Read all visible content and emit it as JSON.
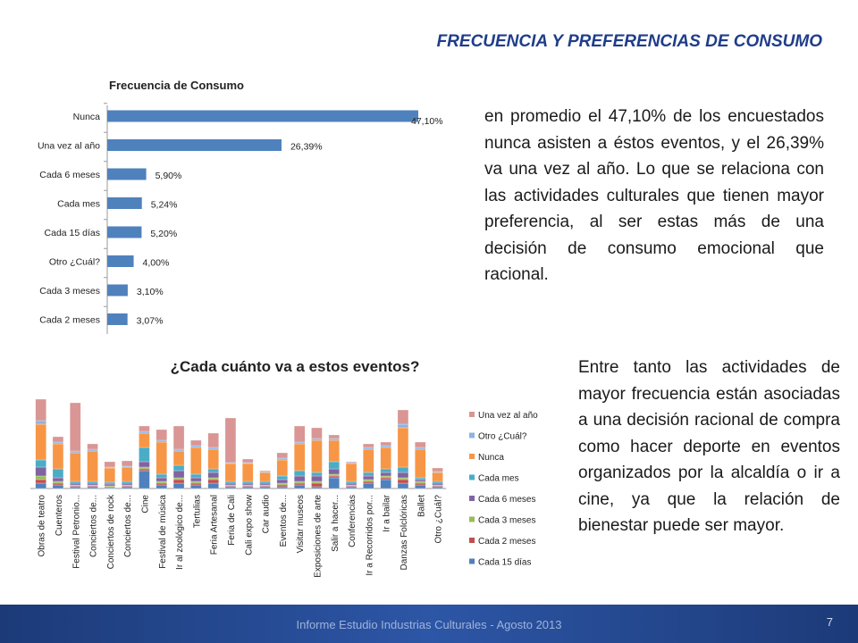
{
  "header": {
    "title": "FRECUENCIA Y PREFERENCIAS DE CONSUMO"
  },
  "text": {
    "paragraph1": "en promedio el 47,10% de los encuestados nunca asisten a éstos eventos, y el 26,39% va una vez al año. Lo que se relaciona con las actividades culturales que tienen mayor preferencia, al ser estas más de una decisión de consumo emocional que racional.",
    "paragraph2": "Entre tanto las actividades de mayor frecuencia están asociadas a una decisión racional de compra como hacer deporte en eventos organizados por la alcaldía o ir a cine, ya que la relación de bienestar puede ser mayor."
  },
  "footer": {
    "text": "Informe Estudio Industrias Culturales  -  Agosto 2013",
    "page": "7"
  },
  "chart_data": [
    {
      "type": "bar",
      "orientation": "horizontal",
      "title": "Frecuencia de Consumo",
      "color": "#4f81bd",
      "xlim": [
        0,
        47.1
      ],
      "categories": [
        "Nunca",
        "Una vez al año",
        "Cada 6 meses",
        "Cada mes",
        "Cada 15 días",
        "Otro ¿Cuál?",
        "Cada 3 meses",
        "Cada 2 meses"
      ],
      "values": [
        47.1,
        26.39,
        5.9,
        5.24,
        5.2,
        4.0,
        3.1,
        3.07
      ],
      "labels": [
        "47,10%",
        "26,39%",
        "5,90%",
        "5,24%",
        "5,20%",
        "4,00%",
        "3,10%",
        "3,07%"
      ]
    },
    {
      "type": "bar",
      "stacked": true,
      "title": "¿Cada cuánto va a estos eventos?",
      "legend": "right",
      "categories": [
        "Obras de teatro",
        "Cuenteros",
        "Festival Petronio...",
        "Conciertos de...",
        "Conciertos de rock",
        "Conciertos de...",
        "Cine",
        "Festival de música",
        "Ir al zoológico de...",
        "Tertulias",
        "Feria Artesanal",
        "Feria de Cali",
        "Cali expo show",
        "Car audio",
        "Eventos de...",
        "Visitar museos",
        "Exposiciones de arte",
        "Salir a hacer...",
        "Conferencias",
        "Ir a Recorridos por...",
        "Ir a bailar",
        "Danzas Folclóricas",
        "Ballet",
        "Otro ¿Cuál?"
      ],
      "series": [
        {
          "name": "Cada 15 días",
          "color": "#4f81bd",
          "values": [
            3,
            2,
            1,
            1,
            0.5,
            1,
            10,
            2,
            3,
            2,
            3,
            1,
            1,
            1,
            1,
            2,
            1,
            6,
            1,
            3,
            5,
            3,
            2,
            1
          ]
        },
        {
          "name": "Cada 2 meses",
          "color": "#c0504d",
          "values": [
            2,
            1,
            0.5,
            0.5,
            0.5,
            0.5,
            1,
            1,
            2,
            1,
            2,
            0.5,
            0.5,
            0.5,
            1,
            1,
            2,
            1,
            0.5,
            1,
            1,
            2,
            1,
            0.5
          ]
        },
        {
          "name": "Cada 3 meses",
          "color": "#9bbb59",
          "values": [
            2,
            1,
            0.5,
            0.5,
            0.5,
            0.5,
            1,
            1,
            1,
            1,
            1,
            0.5,
            0.5,
            0.5,
            1,
            1,
            1,
            1,
            0.5,
            1,
            1,
            1,
            1,
            0.5
          ]
        },
        {
          "name": "Cada 6 meses",
          "color": "#8064a2",
          "values": [
            5,
            2,
            1,
            1,
            1,
            1,
            3,
            2,
            4,
            2,
            3,
            1,
            1,
            1,
            2,
            3,
            3,
            3,
            1,
            2,
            2,
            3,
            1,
            1
          ]
        },
        {
          "name": "Cada mes",
          "color": "#4bacc6",
          "values": [
            4,
            5,
            1,
            1,
            1,
            1,
            8,
            2,
            3,
            2,
            2,
            1,
            1,
            1,
            2,
            3,
            2,
            4,
            1,
            2,
            2,
            3,
            1,
            1
          ]
        },
        {
          "name": "Nunca",
          "color": "#f79646",
          "values": [
            20,
            14,
            16,
            17,
            8,
            8,
            8,
            18,
            8,
            15,
            11,
            10,
            10,
            5,
            9,
            15,
            18,
            12,
            10,
            13,
            12,
            22,
            16,
            5
          ]
        },
        {
          "name": "Otro ¿Cuál?",
          "color": "#8db3e2",
          "values": [
            2,
            1,
            1,
            1,
            0.5,
            0.5,
            1,
            1,
            1,
            1,
            1,
            0.5,
            0.5,
            0.5,
            1,
            1,
            1,
            1,
            0.5,
            1,
            1,
            2,
            1,
            0.5
          ]
        },
        {
          "name": "Una vez al año",
          "color": "#d99694",
          "values": [
            12,
            3,
            27,
            3,
            3,
            3,
            3,
            6,
            13,
            3,
            8,
            25,
            2,
            0.5,
            3,
            9,
            6,
            2,
            0.5,
            2,
            2,
            8,
            3,
            2
          ]
        }
      ]
    }
  ]
}
